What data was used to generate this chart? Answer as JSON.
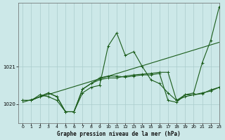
{
  "bg_color": "#cce8e8",
  "grid_color": "#aacccc",
  "line_color": "#1a5c1a",
  "xlabel": "Graphe pression niveau de la mer (hPa)",
  "xlim": [
    -0.5,
    23
  ],
  "ylim": [
    1019.5,
    1022.7
  ],
  "yticks": [
    1020,
    1021
  ],
  "xticks": [
    0,
    1,
    2,
    3,
    4,
    5,
    6,
    7,
    8,
    9,
    10,
    11,
    12,
    13,
    14,
    15,
    16,
    17,
    18,
    19,
    20,
    21,
    22,
    23
  ],
  "line1_x": [
    0,
    1,
    2,
    3,
    4,
    5,
    6,
    7,
    8,
    9,
    10,
    11,
    12,
    13,
    14,
    15,
    16,
    17,
    18,
    19,
    20,
    21,
    22,
    23
  ],
  "line1_y": [
    1020.1,
    1020.1,
    1020.25,
    1020.2,
    1020.1,
    1019.8,
    1019.8,
    1020.3,
    1020.45,
    1020.5,
    1021.55,
    1021.9,
    1021.3,
    1021.4,
    1021.0,
    1020.65,
    1020.55,
    1020.3,
    1020.1,
    1020.25,
    1020.3,
    1021.1,
    1021.7,
    1022.6
  ],
  "line2_x": [
    0,
    1,
    2,
    3,
    4,
    5,
    6,
    7,
    8,
    9,
    10,
    11,
    12,
    13,
    14,
    15,
    16,
    17,
    18,
    19,
    20,
    21,
    22,
    23
  ],
  "line2_y": [
    1020.1,
    1020.1,
    1020.2,
    1020.3,
    1020.2,
    1019.8,
    1019.8,
    1020.4,
    1020.55,
    1020.65,
    1020.7,
    1020.7,
    1020.75,
    1020.78,
    1020.8,
    1020.82,
    1020.85,
    1020.85,
    1020.1,
    1020.2,
    1020.25,
    1020.3,
    1020.35,
    1020.45
  ],
  "line3_x": [
    0,
    23
  ],
  "line3_y": [
    1020.05,
    1021.65
  ],
  "line4_x": [
    0,
    1,
    2,
    3,
    4,
    5,
    6,
    7,
    8,
    9,
    10,
    11,
    12,
    13,
    14,
    15,
    16,
    17,
    18,
    19,
    20,
    21,
    22,
    23
  ],
  "line4_y": [
    1020.1,
    1020.1,
    1020.2,
    1020.3,
    1020.2,
    1019.8,
    1019.8,
    1020.4,
    1020.55,
    1020.7,
    1020.75,
    1020.75,
    1020.72,
    1020.75,
    1020.78,
    1020.78,
    1020.82,
    1020.1,
    1020.05,
    1020.25,
    1020.25,
    1020.28,
    1020.38,
    1020.45
  ]
}
